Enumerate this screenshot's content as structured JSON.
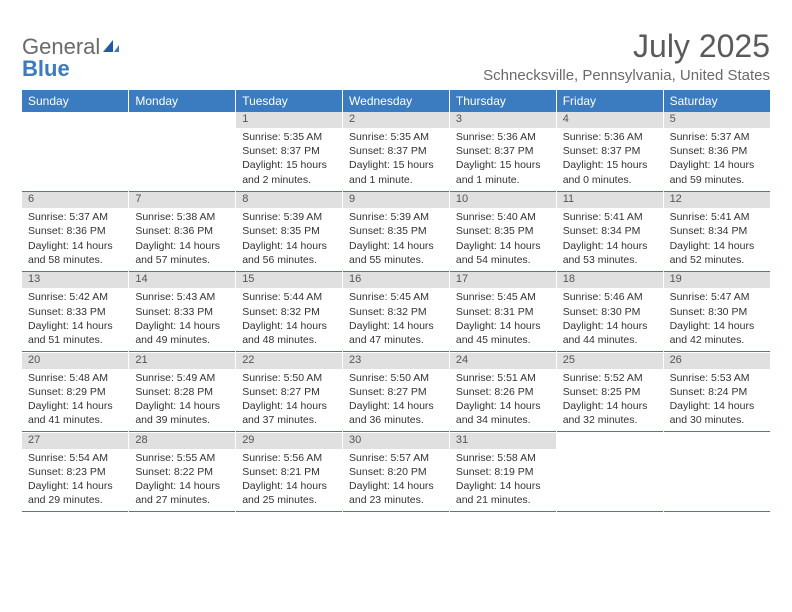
{
  "logo": {
    "text_gray": "General",
    "text_blue": "Blue"
  },
  "title": "July 2025",
  "location": "Schnecksville, Pennsylvania, United States",
  "colors": {
    "header_bar": "#3b7bbf",
    "daynum_bg": "#e0e0e0",
    "rule": "#3b7bbf",
    "text": "#333333",
    "muted": "#6a6a6a",
    "white": "#ffffff"
  },
  "day_labels": [
    "Sunday",
    "Monday",
    "Tuesday",
    "Wednesday",
    "Thursday",
    "Friday",
    "Saturday"
  ],
  "weeks": [
    [
      null,
      null,
      {
        "n": "1",
        "sunrise": "5:35 AM",
        "sunset": "8:37 PM",
        "daylight": "15 hours and 2 minutes."
      },
      {
        "n": "2",
        "sunrise": "5:35 AM",
        "sunset": "8:37 PM",
        "daylight": "15 hours and 1 minute."
      },
      {
        "n": "3",
        "sunrise": "5:36 AM",
        "sunset": "8:37 PM",
        "daylight": "15 hours and 1 minute."
      },
      {
        "n": "4",
        "sunrise": "5:36 AM",
        "sunset": "8:37 PM",
        "daylight": "15 hours and 0 minutes."
      },
      {
        "n": "5",
        "sunrise": "5:37 AM",
        "sunset": "8:36 PM",
        "daylight": "14 hours and 59 minutes."
      }
    ],
    [
      {
        "n": "6",
        "sunrise": "5:37 AM",
        "sunset": "8:36 PM",
        "daylight": "14 hours and 58 minutes."
      },
      {
        "n": "7",
        "sunrise": "5:38 AM",
        "sunset": "8:36 PM",
        "daylight": "14 hours and 57 minutes."
      },
      {
        "n": "8",
        "sunrise": "5:39 AM",
        "sunset": "8:35 PM",
        "daylight": "14 hours and 56 minutes."
      },
      {
        "n": "9",
        "sunrise": "5:39 AM",
        "sunset": "8:35 PM",
        "daylight": "14 hours and 55 minutes."
      },
      {
        "n": "10",
        "sunrise": "5:40 AM",
        "sunset": "8:35 PM",
        "daylight": "14 hours and 54 minutes."
      },
      {
        "n": "11",
        "sunrise": "5:41 AM",
        "sunset": "8:34 PM",
        "daylight": "14 hours and 53 minutes."
      },
      {
        "n": "12",
        "sunrise": "5:41 AM",
        "sunset": "8:34 PM",
        "daylight": "14 hours and 52 minutes."
      }
    ],
    [
      {
        "n": "13",
        "sunrise": "5:42 AM",
        "sunset": "8:33 PM",
        "daylight": "14 hours and 51 minutes."
      },
      {
        "n": "14",
        "sunrise": "5:43 AM",
        "sunset": "8:33 PM",
        "daylight": "14 hours and 49 minutes."
      },
      {
        "n": "15",
        "sunrise": "5:44 AM",
        "sunset": "8:32 PM",
        "daylight": "14 hours and 48 minutes."
      },
      {
        "n": "16",
        "sunrise": "5:45 AM",
        "sunset": "8:32 PM",
        "daylight": "14 hours and 47 minutes."
      },
      {
        "n": "17",
        "sunrise": "5:45 AM",
        "sunset": "8:31 PM",
        "daylight": "14 hours and 45 minutes."
      },
      {
        "n": "18",
        "sunrise": "5:46 AM",
        "sunset": "8:30 PM",
        "daylight": "14 hours and 44 minutes."
      },
      {
        "n": "19",
        "sunrise": "5:47 AM",
        "sunset": "8:30 PM",
        "daylight": "14 hours and 42 minutes."
      }
    ],
    [
      {
        "n": "20",
        "sunrise": "5:48 AM",
        "sunset": "8:29 PM",
        "daylight": "14 hours and 41 minutes."
      },
      {
        "n": "21",
        "sunrise": "5:49 AM",
        "sunset": "8:28 PM",
        "daylight": "14 hours and 39 minutes."
      },
      {
        "n": "22",
        "sunrise": "5:50 AM",
        "sunset": "8:27 PM",
        "daylight": "14 hours and 37 minutes."
      },
      {
        "n": "23",
        "sunrise": "5:50 AM",
        "sunset": "8:27 PM",
        "daylight": "14 hours and 36 minutes."
      },
      {
        "n": "24",
        "sunrise": "5:51 AM",
        "sunset": "8:26 PM",
        "daylight": "14 hours and 34 minutes."
      },
      {
        "n": "25",
        "sunrise": "5:52 AM",
        "sunset": "8:25 PM",
        "daylight": "14 hours and 32 minutes."
      },
      {
        "n": "26",
        "sunrise": "5:53 AM",
        "sunset": "8:24 PM",
        "daylight": "14 hours and 30 minutes."
      }
    ],
    [
      {
        "n": "27",
        "sunrise": "5:54 AM",
        "sunset": "8:23 PM",
        "daylight": "14 hours and 29 minutes."
      },
      {
        "n": "28",
        "sunrise": "5:55 AM",
        "sunset": "8:22 PM",
        "daylight": "14 hours and 27 minutes."
      },
      {
        "n": "29",
        "sunrise": "5:56 AM",
        "sunset": "8:21 PM",
        "daylight": "14 hours and 25 minutes."
      },
      {
        "n": "30",
        "sunrise": "5:57 AM",
        "sunset": "8:20 PM",
        "daylight": "14 hours and 23 minutes."
      },
      {
        "n": "31",
        "sunrise": "5:58 AM",
        "sunset": "8:19 PM",
        "daylight": "14 hours and 21 minutes."
      },
      null,
      null
    ]
  ],
  "labels": {
    "sunrise": "Sunrise:",
    "sunset": "Sunset:",
    "daylight": "Daylight:"
  }
}
